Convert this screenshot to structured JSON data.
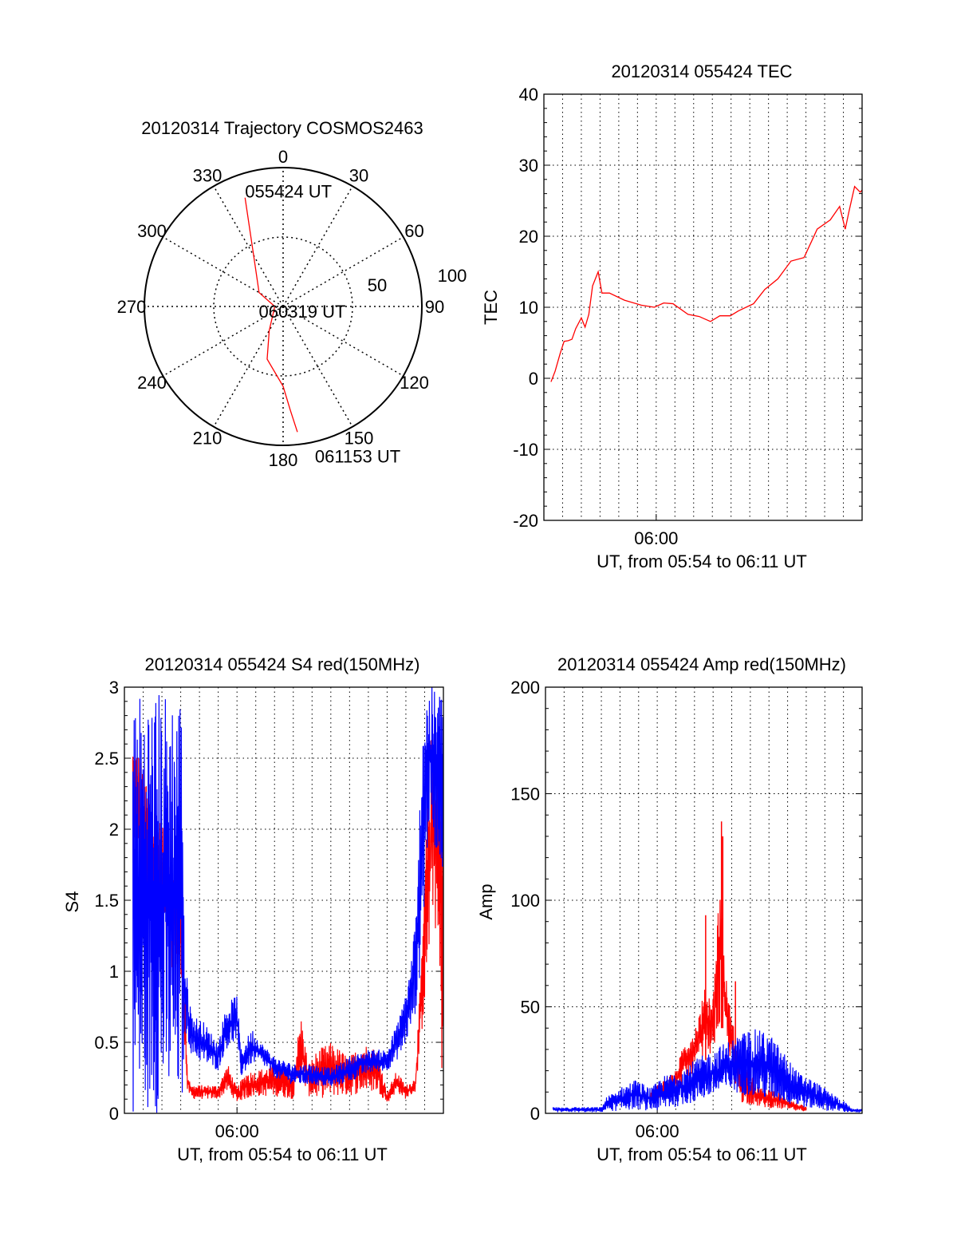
{
  "chart_data": [
    {
      "type": "polar",
      "title": "20120314 Trajectory COSMOS2463",
      "azimuth_ticks": [
        "0",
        "30",
        "60",
        "90",
        "120",
        "150",
        "180",
        "210",
        "240",
        "270",
        "300",
        "330"
      ],
      "radial_labels": [
        "50",
        "100"
      ],
      "radial_max": 100,
      "color": "#ff0000",
      "trajectory": [
        {
          "az": 340.7,
          "r": 83
        },
        {
          "az": 330,
          "r": 42.5
        },
        {
          "az": 300,
          "r": 20
        },
        {
          "az": 270,
          "r": 6
        },
        {
          "az": 210,
          "r": 20
        },
        {
          "az": 196.9,
          "r": 39.6
        },
        {
          "az": 180,
          "r": 57.5
        },
        {
          "az": 176,
          "r": 75
        },
        {
          "az": 173.5,
          "r": 91
        }
      ],
      "time_labels": [
        {
          "label": "055424 UT",
          "at": 0
        },
        {
          "label": "060319 UT",
          "at": 3
        },
        {
          "label": "061153 UT",
          "at": 8
        }
      ]
    },
    {
      "type": "line",
      "title": "20120314 055424 TEC",
      "xlabel": "UT, from 05:54 to 06:11 UT",
      "ylabel": "TEC",
      "xlim": [
        0,
        17
      ],
      "x_units": "minutes after 05:54",
      "xticks": [
        {
          "value": 6,
          "label": "06:00"
        }
      ],
      "ylim": [
        -20,
        40
      ],
      "yticks": [
        "-20",
        "-10",
        "0",
        "10",
        "20",
        "30",
        "40"
      ],
      "grid": true,
      "series": [
        {
          "name": "TEC",
          "color": "#ff0000",
          "x": [
            0.38,
            0.6,
            0.87,
            1.08,
            1.3,
            1.5,
            1.7,
            2.0,
            2.2,
            2.4,
            2.6,
            2.9,
            3.1,
            3.5,
            4.3,
            5.2,
            5.9,
            6.4,
            6.9,
            7.7,
            8.3,
            8.9,
            9.4,
            9.96,
            10.4,
            11.2,
            11.8,
            12.5,
            13.2,
            13.9,
            14.6,
            15.3,
            15.8,
            16.1,
            16.3,
            16.6,
            16.9,
            17.0
          ],
          "y": [
            -0.5,
            1,
            3.5,
            5.2,
            5.3,
            5.5,
            7,
            8.5,
            7.2,
            9,
            13,
            15,
            12,
            12,
            11,
            10.3,
            10,
            10.6,
            10.5,
            9,
            8.7,
            8,
            8.8,
            8.8,
            9.5,
            10.5,
            12.5,
            14,
            16.5,
            17,
            21,
            22.3,
            24.2,
            21,
            23.5,
            27,
            26.2,
            26.5
          ]
        }
      ]
    },
    {
      "type": "line",
      "title": "20120314 055424 S4 red(150MHz)",
      "xlabel": "UT, from 05:54 to 06:11 UT",
      "ylabel": "S4",
      "xlim": [
        0,
        17
      ],
      "x_units": "minutes after 05:54",
      "xticks": [
        {
          "value": 6,
          "label": "06:00"
        }
      ],
      "ylim": [
        0,
        3
      ],
      "yticks": [
        "0",
        "0.5",
        "1",
        "1.5",
        "2",
        "2.5",
        "3"
      ],
      "grid": true,
      "series": [
        {
          "name": "red",
          "color": "#ff0000",
          "x": [
            0.45,
            3.0,
            3.2,
            3.35,
            3.6,
            5.0,
            5.5,
            6.0,
            6.5,
            7.0,
            8.0,
            9.0,
            9.4,
            9.8,
            10.3,
            11.0,
            12.0,
            12.7,
            13.5,
            14.0,
            14.5,
            15.0,
            15.5,
            15.8,
            16.2,
            16.5,
            17.0
          ],
          "lower": [
            1.6,
            0.9,
            0.5,
            0.15,
            0.1,
            0.1,
            0.15,
            0.08,
            0.1,
            0.12,
            0.12,
            0.1,
            0.25,
            0.12,
            0.1,
            0.12,
            0.12,
            0.15,
            0.15,
            0.07,
            0.15,
            0.1,
            0.15,
            0.5,
            1.0,
            1.5,
            0.0
          ],
          "upper": [
            2.7,
            1.6,
            1.0,
            0.3,
            0.2,
            0.2,
            0.35,
            0.18,
            0.3,
            0.3,
            0.35,
            0.3,
            0.7,
            0.35,
            0.45,
            0.5,
            0.4,
            0.5,
            0.45,
            0.15,
            0.3,
            0.2,
            0.25,
            1.0,
            2.4,
            2.9,
            2.6
          ]
        },
        {
          "name": "blue",
          "color": "#0000ff",
          "x": [
            0.45,
            3.1,
            3.2,
            3.6,
            4.2,
            5.0,
            5.4,
            6.0,
            6.2,
            6.8,
            7.3,
            8.0,
            9.0,
            10.0,
            11.0,
            12.0,
            13.0,
            14.0,
            14.7,
            15.2,
            15.6,
            15.9,
            16.2,
            17.0
          ],
          "lower": [
            0,
            0,
            0.6,
            0.4,
            0.35,
            0.3,
            0.45,
            0.5,
            0.25,
            0.35,
            0.35,
            0.25,
            0.2,
            0.2,
            0.18,
            0.22,
            0.28,
            0.3,
            0.4,
            0.55,
            0.75,
            1.2,
            2.0,
            1.7
          ],
          "upper": [
            3,
            3,
            1.1,
            0.7,
            0.65,
            0.5,
            0.75,
            0.85,
            0.45,
            0.6,
            0.5,
            0.4,
            0.35,
            0.35,
            0.32,
            0.4,
            0.45,
            0.45,
            0.7,
            1.0,
            1.5,
            3,
            3,
            3
          ]
        }
      ]
    },
    {
      "type": "line",
      "title": "20120314 055424 Amp red(150MHz)",
      "xlabel": "UT, from 05:54 to 06:11 UT",
      "ylabel": "Amp",
      "xlim": [
        0,
        17
      ],
      "x_units": "minutes after 05:54",
      "xticks": [
        {
          "value": 6,
          "label": "06:00"
        }
      ],
      "ylim": [
        0,
        200
      ],
      "yticks": [
        "0",
        "50",
        "100",
        "150",
        "200"
      ],
      "grid": true,
      "series": [
        {
          "name": "red",
          "color": "#ff0000",
          "x": [
            5.6,
            6.0,
            7.0,
            7.5,
            8.0,
            8.6,
            9.0,
            9.4,
            9.6,
            10.0,
            10.5,
            11.5,
            12.5,
            13.5,
            14.0
          ],
          "lower": [
            5,
            6,
            10,
            15,
            20,
            25,
            30,
            40,
            40,
            20,
            5,
            3,
            2,
            1,
            1
          ],
          "upper": [
            10,
            14,
            20,
            35,
            40,
            60,
            55,
            120,
            70,
            45,
            25,
            12,
            10,
            5,
            3
          ],
          "peaks": [
            {
              "x": 8.6,
              "y": 93
            },
            {
              "x": 9.45,
              "y": 137
            },
            {
              "x": 9.52,
              "y": 130
            },
            {
              "x": 10.2,
              "y": 62
            }
          ]
        },
        {
          "name": "blue",
          "color": "#0000ff",
          "x": [
            0.4,
            3.0,
            3.3,
            4.0,
            4.8,
            5.7,
            6.2,
            7.0,
            8.0,
            9.0,
            10.0,
            11.0,
            12.0,
            12.7,
            13.5,
            14.5,
            15.3,
            16.0,
            16.5,
            17.0
          ],
          "lower": [
            0.5,
            0.5,
            1,
            1,
            2,
            1,
            1,
            3,
            5,
            8,
            10,
            8,
            6,
            5,
            3,
            2,
            1,
            0.5,
            0.5,
            0.5
          ],
          "upper": [
            3,
            3,
            8,
            12,
            16,
            12,
            17,
            20,
            25,
            30,
            35,
            40,
            38,
            30,
            20,
            15,
            10,
            6,
            2,
            2
          ]
        }
      ]
    }
  ]
}
